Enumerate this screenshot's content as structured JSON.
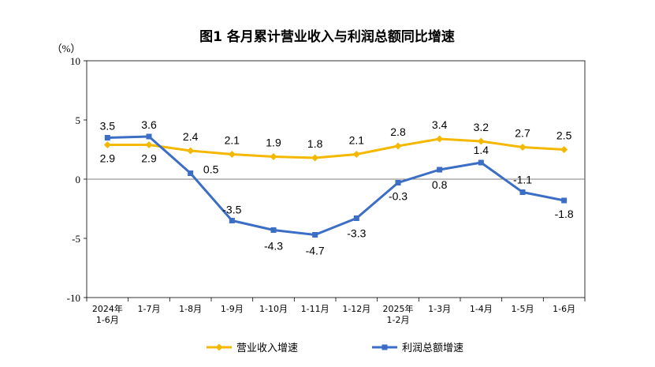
{
  "chart_data": {
    "type": "line",
    "title": "图1  各月累计营业收入与利润总额同比增速",
    "ylabel": "（%）",
    "ylim": [
      -10,
      10
    ],
    "yticks": [
      10,
      5,
      0,
      -5,
      -10
    ],
    "categories": [
      [
        "2024年",
        "1-6月"
      ],
      [
        "1-7月"
      ],
      [
        "1-8月"
      ],
      [
        "1-9月"
      ],
      [
        "1-10月"
      ],
      [
        "1-11月"
      ],
      [
        "1-12月"
      ],
      [
        "2025年",
        "1-2月"
      ],
      [
        "1-3月"
      ],
      [
        "1-4月"
      ],
      [
        "1-5月"
      ],
      [
        "1-6月"
      ]
    ],
    "series": [
      {
        "name": "营业收入增速",
        "color": "#F5B800",
        "marker": "diamond",
        "values": [
          2.9,
          2.9,
          2.4,
          2.1,
          1.9,
          1.8,
          2.1,
          2.8,
          3.4,
          3.2,
          2.7,
          2.5
        ]
      },
      {
        "name": "利润总额增速",
        "color": "#3B6EC4",
        "marker": "square",
        "values": [
          3.5,
          3.6,
          0.5,
          -3.5,
          -4.3,
          -4.7,
          -3.3,
          -0.3,
          0.8,
          1.4,
          -1.1,
          -1.8
        ]
      }
    ],
    "legend": "bottom",
    "grid": false
  }
}
